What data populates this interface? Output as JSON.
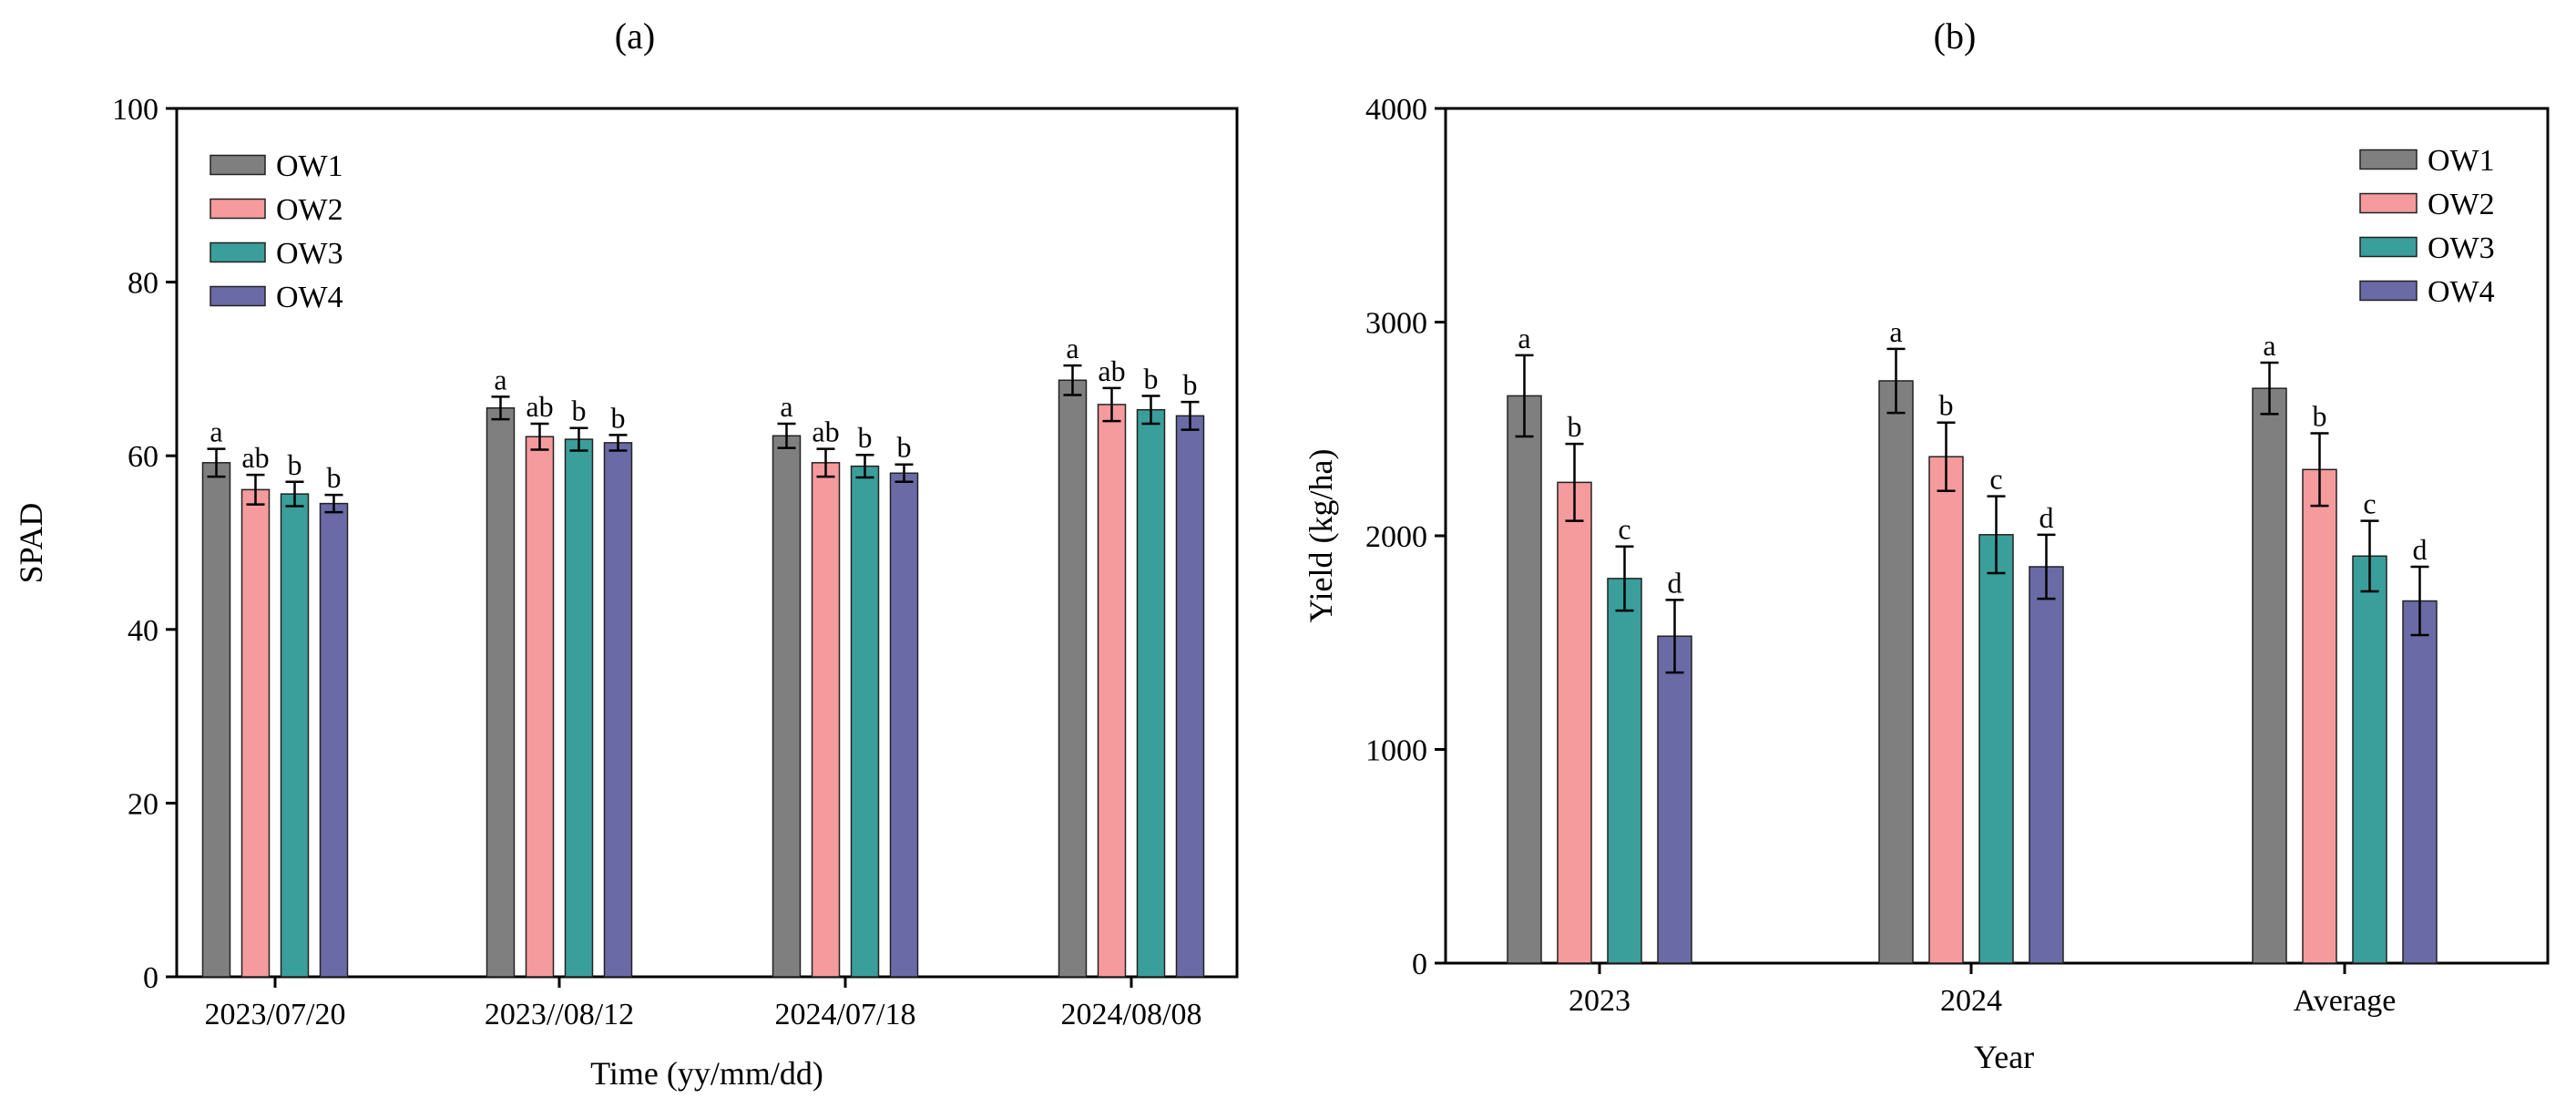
{
  "colors": {
    "OW1": "#7f7f7f",
    "OW2": "#f59a9d",
    "OW3": "#3a9e9a",
    "OW4": "#6a6aa6"
  },
  "chart_data": [
    {
      "type": "bar",
      "panel": "(a)",
      "title": "",
      "xlabel": "Time (yy/mm/dd)",
      "ylabel": "SPAD",
      "ylim": [
        0,
        100
      ],
      "yticks": [
        0,
        20,
        40,
        60,
        80,
        100
      ],
      "legend_position": "top-left",
      "categories": [
        "2023/07/20",
        "2023//08/12",
        "2024/07/18",
        "2024/08/08"
      ],
      "series": [
        {
          "name": "OW1",
          "values": [
            59.2,
            65.5,
            62.3,
            68.7
          ],
          "errors": [
            1.6,
            1.3,
            1.4,
            1.7
          ],
          "labels": [
            "a",
            "a",
            "a",
            "a"
          ]
        },
        {
          "name": "OW2",
          "values": [
            56.1,
            62.2,
            59.2,
            65.9
          ],
          "errors": [
            1.7,
            1.5,
            1.6,
            1.9
          ],
          "labels": [
            "ab",
            "ab",
            "ab",
            "ab"
          ]
        },
        {
          "name": "OW3",
          "values": [
            55.6,
            61.9,
            58.8,
            65.3
          ],
          "errors": [
            1.4,
            1.3,
            1.3,
            1.6
          ],
          "labels": [
            "b",
            "b",
            "b",
            "b"
          ]
        },
        {
          "name": "OW4",
          "values": [
            54.5,
            61.5,
            58.0,
            64.6
          ],
          "errors": [
            1.0,
            0.9,
            1.0,
            1.6
          ],
          "labels": [
            "b",
            "b",
            "b",
            "b"
          ]
        }
      ]
    },
    {
      "type": "bar",
      "panel": "(b)",
      "title": "",
      "xlabel": "Year",
      "ylabel": "Yield (kg/ha)",
      "ylim": [
        0,
        4000
      ],
      "yticks": [
        0,
        1000,
        2000,
        3000,
        4000
      ],
      "legend_position": "top-right",
      "categories": [
        "2023",
        "2024",
        "Average"
      ],
      "series": [
        {
          "name": "OW1",
          "values": [
            2655,
            2725,
            2690
          ],
          "errors": [
            190,
            150,
            120
          ],
          "labels": [
            "a",
            "a",
            "a"
          ]
        },
        {
          "name": "OW2",
          "values": [
            2250,
            2370,
            2310
          ],
          "errors": [
            180,
            160,
            170
          ],
          "labels": [
            "b",
            "b",
            "b"
          ]
        },
        {
          "name": "OW3",
          "values": [
            1800,
            2005,
            1905
          ],
          "errors": [
            150,
            180,
            165
          ],
          "labels": [
            "c",
            "c",
            "c"
          ]
        },
        {
          "name": "OW4",
          "values": [
            1530,
            1855,
            1695
          ],
          "errors": [
            170,
            150,
            160
          ],
          "labels": [
            "d",
            "d",
            "d"
          ]
        }
      ]
    }
  ]
}
